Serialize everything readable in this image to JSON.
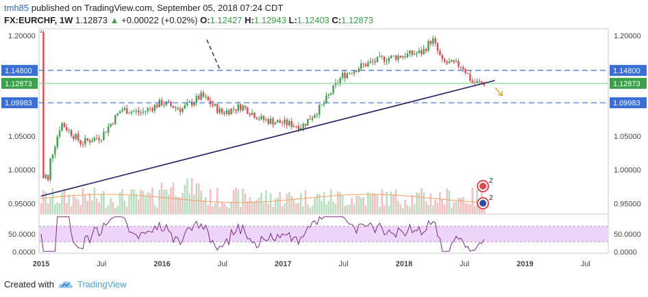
{
  "header": {
    "author": "tmh85",
    "published_text": "published on TradingView.com, September 05, 2018 07:24 CDT",
    "symbol": "FX:EURCHF, 1W",
    "last": "1.12873",
    "change": "+0.00022 (+0.02%)",
    "o_label": "O:",
    "o_value": "1.12427",
    "h_label": "H:",
    "h_value": "1.12943",
    "l_label": "L:",
    "l_value": "1.12403",
    "c_label": "C:",
    "c_value": "1.12873"
  },
  "footer": {
    "created_with": "Created with",
    "brand": "TradingView"
  },
  "colors": {
    "up": "#3aa04a",
    "down": "#e0484f",
    "hline": "#3a6fd8",
    "trendline": "#2b1f66",
    "rsi_line": "#7a2a8a",
    "rsi_band": "#ecd5f7",
    "ma": "#f0a060"
  },
  "chart_data": {
    "type": "candlestick",
    "title": "",
    "x_ticks": [
      "2015",
      "Jul",
      "2016",
      "Jul",
      "2017",
      "Jul",
      "2018",
      "Jul",
      "2019",
      "Jul"
    ],
    "price_ticks": [
      "1.20000",
      "1.05000",
      "1.00000",
      "0.95000"
    ],
    "price_range": [
      0.935,
      1.21
    ],
    "level_labels": [
      {
        "value": 1.148,
        "label": "1.14800"
      },
      {
        "value": 1.12873,
        "label": "1.12873"
      },
      {
        "value": 1.09983,
        "label": "1.09983"
      }
    ],
    "rsi_ticks": [
      "50.0000",
      "0.0000"
    ],
    "rsi_band": [
      30,
      70
    ],
    "trendline": {
      "start": [
        "2015-01",
        0.961
      ],
      "end": [
        "2018-10",
        1.133
      ]
    },
    "badge_counts": [
      "2",
      "2"
    ],
    "weekly_close_sample": [
      [
        "2015-01",
        1.205
      ],
      [
        "2015-01b",
        0.98
      ],
      [
        "2015-03",
        1.07
      ],
      [
        "2015-05",
        1.04
      ],
      [
        "2015-07",
        1.05
      ],
      [
        "2015-09",
        1.09
      ],
      [
        "2015-11",
        1.085
      ],
      [
        "2016-01",
        1.1
      ],
      [
        "2016-03",
        1.09
      ],
      [
        "2016-05",
        1.11
      ],
      [
        "2016-07",
        1.085
      ],
      [
        "2016-09",
        1.095
      ],
      [
        "2016-11",
        1.075
      ],
      [
        "2017-01",
        1.07
      ],
      [
        "2017-03",
        1.065
      ],
      [
        "2017-05",
        1.095
      ],
      [
        "2017-07",
        1.14
      ],
      [
        "2017-09",
        1.155
      ],
      [
        "2017-11",
        1.165
      ],
      [
        "2018-01",
        1.17
      ],
      [
        "2018-03",
        1.175
      ],
      [
        "2018-04",
        1.195
      ],
      [
        "2018-05",
        1.16
      ],
      [
        "2018-07",
        1.155
      ],
      [
        "2018-08",
        1.13
      ],
      [
        "2018-09",
        1.12873
      ]
    ]
  }
}
